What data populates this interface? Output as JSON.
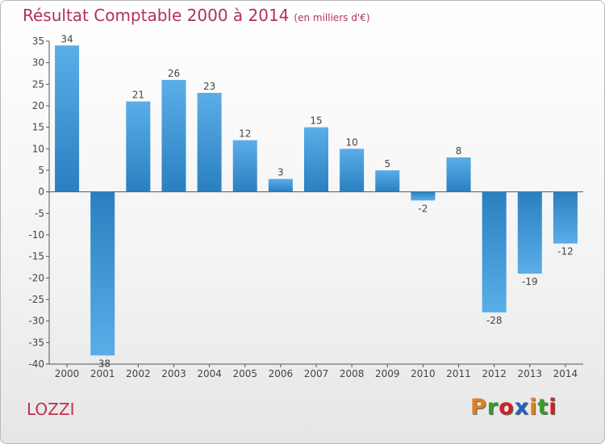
{
  "title": "Résultat Comptable 2000 à 2014",
  "subtitle": "(en milliers d'€)",
  "commune": "LOZZI",
  "logo": "Proxiti",
  "colors": {
    "bar_light": "#5aaee8",
    "bar_dark": "#2a7fc0",
    "title": "#b03060",
    "logo_letters": [
      "#e08020",
      "#3a9a30",
      "#d02020",
      "#2060c0",
      "#e08020",
      "#3a9a30",
      "#d02020"
    ]
  },
  "chart_data": {
    "type": "bar",
    "categories": [
      "2000",
      "2001",
      "2002",
      "2003",
      "2004",
      "2005",
      "2006",
      "2007",
      "2008",
      "2009",
      "2010",
      "2011",
      "2012",
      "2013",
      "2014"
    ],
    "values": [
      34,
      -38,
      21,
      26,
      23,
      12,
      3,
      15,
      10,
      5,
      -2,
      8,
      -28,
      -19,
      -12
    ],
    "ylim": [
      -40,
      35
    ],
    "yticks": [
      35,
      30,
      25,
      20,
      15,
      10,
      5,
      0,
      -5,
      -10,
      -15,
      -20,
      -25,
      -30,
      -35,
      -40
    ],
    "grid": false,
    "data_labels": true
  }
}
